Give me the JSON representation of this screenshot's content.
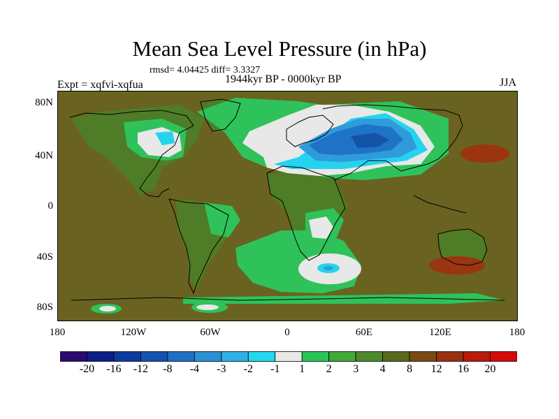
{
  "title": "Mean Sea Level Pressure (in hPa)",
  "stats": "rmsd= 4.04425 diff= 3.3327",
  "period": "1944kyr BP - 0000kyr BP",
  "experiment": "Expt = xqfvi-xqfua",
  "season": "JJA",
  "lat_labels": [
    "80N",
    "40N",
    "0",
    "40S",
    "80S"
  ],
  "lon_labels": [
    "180",
    "120W",
    "60W",
    "0",
    "60E",
    "120E",
    "180"
  ],
  "colorbar": {
    "labels": [
      "-20",
      "-16",
      "-12",
      "-8",
      "-4",
      "-3",
      "-2",
      "-1",
      "1",
      "2",
      "3",
      "4",
      "8",
      "12",
      "16",
      "20"
    ],
    "colors": [
      "#2a0a6e",
      "#0b1f86",
      "#0e3a9e",
      "#1452b0",
      "#1f6fc4",
      "#2c8fd6",
      "#2fb0e6",
      "#22d8ee",
      "#e8e8e8",
      "#28c458",
      "#42a838",
      "#4c8a2a",
      "#5a6a1c",
      "#7a4a16",
      "#9a3010",
      "#b81a0c",
      "#d40a0a"
    ]
  },
  "fill_colors": {
    "ocean": "#6a6220",
    "land_base": "#4f7c26",
    "green": "#2fc25a",
    "white": "#e8e8e8",
    "cyan": "#26d3ee",
    "blue_light": "#2f9bda",
    "blue_mid": "#1f73c6",
    "blue_dark": "#1553a8",
    "red": "#9a3510",
    "coast": "#000000"
  }
}
